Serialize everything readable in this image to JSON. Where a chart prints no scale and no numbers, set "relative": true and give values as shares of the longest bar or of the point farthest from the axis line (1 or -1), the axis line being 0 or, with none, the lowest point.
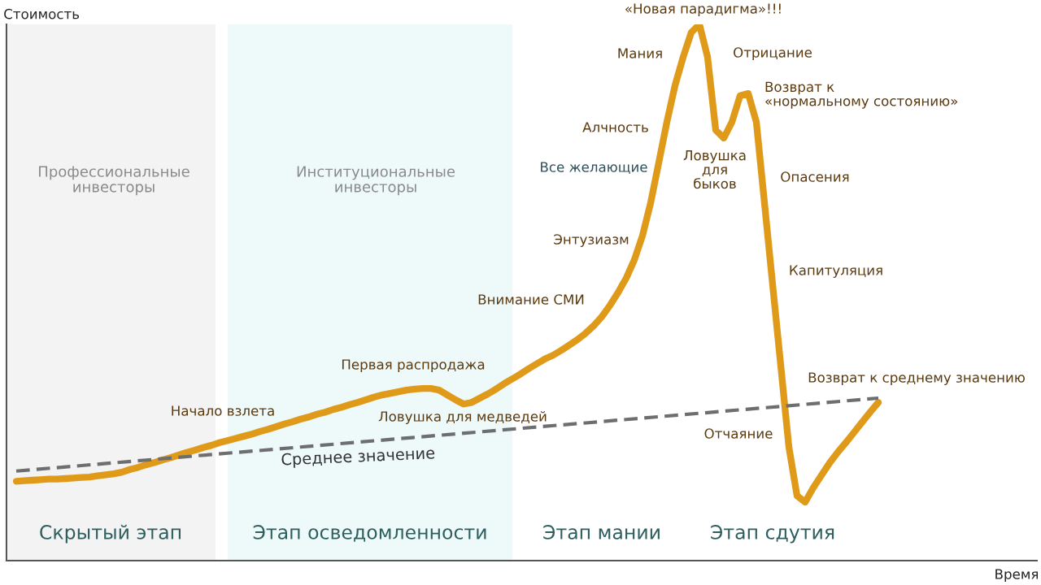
{
  "chart_data": {
    "type": "line",
    "relative": true,
    "ylabel": "Стоимость",
    "categories": [
      null,
      null,
      null,
      null,
      null,
      null,
      null,
      null,
      null,
      null,
      null,
      null,
      null,
      null,
      null,
      null,
      null,
      null,
      null,
      null,
      null,
      null,
      null,
      null,
      null,
      null,
      null,
      null,
      null,
      null,
      null,
      null,
      null,
      null,
      null,
      null,
      null,
      null,
      null,
      null,
      null,
      null,
      null,
      null,
      null,
      null,
      null,
      null,
      null,
      null,
      null,
      null,
      null,
      null,
      null,
      null,
      null,
      null,
      null,
      null,
      null,
      null,
      null,
      null,
      null,
      null,
      null,
      null,
      null,
      null,
      null,
      null,
      null,
      null,
      null,
      null,
      null,
      null,
      null,
      null,
      null,
      null,
      null,
      null,
      null,
      null,
      null,
      null,
      null,
      null,
      null,
      null,
      null,
      null,
      null,
      null,
      null,
      null,
      null,
      null,
      null,
      null,
      null,
      null,
      null,
      null,
      null
    ],
    "series": [
      {
        "color": "#e09a1a",
        "line_style": "solid",
        "values": [
          0.148,
          0.149,
          0.15,
          0.151,
          0.152,
          0.152,
          0.153,
          0.154,
          0.155,
          0.156,
          0.158,
          0.16,
          0.162,
          0.165,
          0.17,
          0.174,
          0.179,
          0.183,
          0.188,
          0.192,
          0.197,
          0.202,
          0.206,
          0.211,
          0.215,
          0.22,
          0.224,
          0.228,
          0.232,
          0.236,
          0.241,
          0.245,
          0.25,
          0.255,
          0.259,
          0.264,
          0.268,
          0.273,
          0.277,
          0.282,
          0.286,
          0.291,
          0.295,
          0.3,
          0.305,
          0.309,
          0.312,
          0.315,
          0.318,
          0.32,
          0.321,
          0.321,
          0.318,
          0.309,
          0.3,
          0.292,
          0.295,
          0.303,
          0.311,
          0.32,
          0.33,
          0.339,
          0.348,
          0.358,
          0.367,
          0.376,
          0.383,
          0.392,
          0.402,
          0.412,
          0.424,
          0.438,
          0.455,
          0.476,
          0.5,
          0.527,
          0.561,
          0.606,
          0.667,
          0.742,
          0.818,
          0.886,
          0.939,
          0.985,
          1.0,
          0.939,
          0.803,
          0.788,
          0.818,
          0.867,
          0.871,
          0.818,
          0.667,
          0.515,
          0.364,
          0.212,
          0.121,
          0.109,
          0.136,
          0.159,
          0.182,
          0.202,
          0.22,
          0.239,
          0.258,
          0.277,
          0.295
        ]
      },
      {
        "name": "Среднее значение",
        "color": "#6d6e70",
        "line_style": "dashed",
        "values": [
          0.167,
          null,
          null,
          null,
          null,
          null,
          null,
          null,
          null,
          null,
          null,
          null,
          null,
          null,
          null,
          null,
          null,
          null,
          null,
          null,
          null,
          null,
          null,
          null,
          null,
          null,
          null,
          null,
          null,
          null,
          null,
          null,
          null,
          null,
          null,
          null,
          null,
          null,
          null,
          null,
          null,
          null,
          null,
          null,
          null,
          null,
          null,
          null,
          null,
          null,
          null,
          null,
          null,
          null,
          null,
          null,
          null,
          null,
          null,
          null,
          null,
          null,
          null,
          null,
          null,
          null,
          null,
          null,
          null,
          null,
          null,
          null,
          null,
          null,
          null,
          null,
          null,
          null,
          null,
          null,
          null,
          null,
          null,
          null,
          null,
          null,
          null,
          null,
          null,
          null,
          null,
          null,
          null,
          null,
          null,
          null,
          null,
          null,
          null,
          null,
          null,
          null,
          null,
          null,
          null,
          null,
          0.303
        ]
      }
    ],
    "annotations": [
      "«Новая парадигма»!!!",
      "Мания",
      "Отрицание",
      "Возврат к\n«нормальному состоянию»",
      "Алчность",
      "Все желающие",
      "Ловушка\nдля\nбыков",
      "Опасения",
      "Энтузиазм",
      "Капитуляция",
      "Внимание СМИ",
      "Первая распродажа",
      "Начало взлета",
      "Ловушка для медведей",
      "Возврат к среднему значению",
      "Отчаяние",
      "Скрытый этап",
      "Этап осведомленности",
      "Этап мании",
      "Этап сдутия",
      "Профессиональные\nинвесторы",
      "Институциональные\nинвесторы",
      "Время"
    ],
    "legend": false,
    "marker": "none"
  }
}
